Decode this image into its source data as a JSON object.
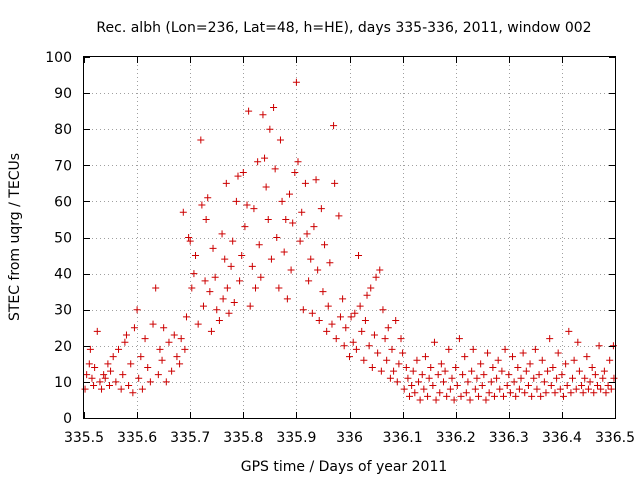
{
  "chart_data": {
    "type": "scatter",
    "title": "Rec. albh (Lon=236, Lat=48, h=HE), days 335-336, 2011, window 002",
    "xlabel": "GPS time / Days of year 2011",
    "ylabel": "STEC from uqrg / TECUs",
    "xlim": [
      335.5,
      336.5
    ],
    "ylim": [
      0,
      100
    ],
    "xticks": [
      "335.5",
      "335.6",
      "335.7",
      "335.8",
      "335.9",
      "336",
      "336.1",
      "336.2",
      "336.3",
      "336.4",
      "336.5"
    ],
    "yticks": [
      "0",
      "10",
      "20",
      "30",
      "40",
      "50",
      "60",
      "70",
      "80",
      "90",
      "100"
    ],
    "grid": true,
    "marker": "plus",
    "color": "#cc0000",
    "points": [
      [
        335.502,
        8
      ],
      [
        335.505,
        12
      ],
      [
        335.51,
        15
      ],
      [
        335.512,
        19
      ],
      [
        335.515,
        11
      ],
      [
        335.518,
        9
      ],
      [
        335.52,
        14
      ],
      [
        335.525,
        24
      ],
      [
        335.53,
        10
      ],
      [
        335.533,
        8
      ],
      [
        335.537,
        12
      ],
      [
        335.54,
        11
      ],
      [
        335.545,
        15
      ],
      [
        335.548,
        9
      ],
      [
        335.55,
        13
      ],
      [
        335.555,
        17
      ],
      [
        335.56,
        10
      ],
      [
        335.565,
        19
      ],
      [
        335.57,
        8
      ],
      [
        335.573,
        12
      ],
      [
        335.577,
        21
      ],
      [
        335.58,
        23
      ],
      [
        335.584,
        9
      ],
      [
        335.588,
        15
      ],
      [
        335.592,
        7
      ],
      [
        335.595,
        25
      ],
      [
        335.6,
        30
      ],
      [
        335.603,
        11
      ],
      [
        335.607,
        17
      ],
      [
        335.61,
        8
      ],
      [
        335.615,
        22
      ],
      [
        335.62,
        14
      ],
      [
        335.625,
        10
      ],
      [
        335.63,
        26
      ],
      [
        335.635,
        36
      ],
      [
        335.64,
        12
      ],
      [
        335.643,
        19
      ],
      [
        335.647,
        16
      ],
      [
        335.65,
        25
      ],
      [
        335.655,
        10
      ],
      [
        335.66,
        21
      ],
      [
        335.665,
        13
      ],
      [
        335.67,
        23
      ],
      [
        335.675,
        17
      ],
      [
        335.68,
        15
      ],
      [
        335.683,
        22
      ],
      [
        335.687,
        57
      ],
      [
        335.69,
        19
      ],
      [
        335.693,
        28
      ],
      [
        335.697,
        50
      ],
      [
        335.7,
        49
      ],
      [
        335.703,
        36
      ],
      [
        335.707,
        40
      ],
      [
        335.71,
        45
      ],
      [
        335.715,
        26
      ],
      [
        335.72,
        77
      ],
      [
        335.722,
        59
      ],
      [
        335.725,
        31
      ],
      [
        335.728,
        38
      ],
      [
        335.73,
        55
      ],
      [
        335.733,
        61
      ],
      [
        335.737,
        35
      ],
      [
        335.74,
        24
      ],
      [
        335.743,
        47
      ],
      [
        335.747,
        39
      ],
      [
        335.75,
        30
      ],
      [
        335.755,
        27
      ],
      [
        335.76,
        51
      ],
      [
        335.762,
        33
      ],
      [
        335.765,
        44
      ],
      [
        335.768,
        65
      ],
      [
        335.77,
        36
      ],
      [
        335.773,
        29
      ],
      [
        335.777,
        42
      ],
      [
        335.78,
        49
      ],
      [
        335.783,
        32
      ],
      [
        335.787,
        60
      ],
      [
        335.79,
        67
      ],
      [
        335.793,
        38
      ],
      [
        335.797,
        45
      ],
      [
        335.8,
        68
      ],
      [
        335.803,
        53
      ],
      [
        335.807,
        59
      ],
      [
        335.81,
        85
      ],
      [
        335.813,
        31
      ],
      [
        335.817,
        42
      ],
      [
        335.82,
        58
      ],
      [
        335.823,
        36
      ],
      [
        335.827,
        71
      ],
      [
        335.83,
        48
      ],
      [
        335.833,
        39
      ],
      [
        335.837,
        84
      ],
      [
        335.84,
        72
      ],
      [
        335.843,
        64
      ],
      [
        335.847,
        55
      ],
      [
        335.85,
        80
      ],
      [
        335.853,
        44
      ],
      [
        335.857,
        86
      ],
      [
        335.86,
        69
      ],
      [
        335.863,
        50
      ],
      [
        335.867,
        36
      ],
      [
        335.87,
        77
      ],
      [
        335.873,
        60
      ],
      [
        335.877,
        46
      ],
      [
        335.88,
        55
      ],
      [
        335.883,
        33
      ],
      [
        335.887,
        62
      ],
      [
        335.89,
        41
      ],
      [
        335.893,
        54
      ],
      [
        335.897,
        68
      ],
      [
        335.9,
        93
      ],
      [
        335.903,
        71
      ],
      [
        335.907,
        49
      ],
      [
        335.91,
        57
      ],
      [
        335.913,
        30
      ],
      [
        335.917,
        65
      ],
      [
        335.92,
        51
      ],
      [
        335.923,
        38
      ],
      [
        335.927,
        44
      ],
      [
        335.93,
        29
      ],
      [
        335.933,
        53
      ],
      [
        335.937,
        66
      ],
      [
        335.94,
        41
      ],
      [
        335.943,
        27
      ],
      [
        335.947,
        58
      ],
      [
        335.95,
        35
      ],
      [
        335.953,
        48
      ],
      [
        335.957,
        24
      ],
      [
        335.96,
        31
      ],
      [
        335.963,
        43
      ],
      [
        335.967,
        26
      ],
      [
        335.97,
        81
      ],
      [
        335.972,
        65
      ],
      [
        335.975,
        22
      ],
      [
        335.98,
        56
      ],
      [
        335.983,
        28
      ],
      [
        335.987,
        33
      ],
      [
        335.99,
        20
      ],
      [
        335.993,
        25
      ],
      [
        336.0,
        17
      ],
      [
        336.003,
        28
      ],
      [
        336.007,
        21
      ],
      [
        336.01,
        29
      ],
      [
        336.013,
        19
      ],
      [
        336.017,
        45
      ],
      [
        336.02,
        31
      ],
      [
        336.023,
        24
      ],
      [
        336.027,
        16
      ],
      [
        336.03,
        27
      ],
      [
        336.033,
        34
      ],
      [
        336.037,
        20
      ],
      [
        336.04,
        36
      ],
      [
        336.043,
        14
      ],
      [
        336.047,
        23
      ],
      [
        336.05,
        39
      ],
      [
        336.053,
        18
      ],
      [
        336.057,
        41
      ],
      [
        336.06,
        13
      ],
      [
        336.063,
        30
      ],
      [
        336.067,
        22
      ],
      [
        336.07,
        16
      ],
      [
        336.073,
        25
      ],
      [
        336.077,
        11
      ],
      [
        336.08,
        19
      ],
      [
        336.083,
        13
      ],
      [
        336.087,
        27
      ],
      [
        336.09,
        10
      ],
      [
        336.093,
        15
      ],
      [
        336.097,
        22
      ],
      [
        336.1,
        18
      ],
      [
        336.103,
        8
      ],
      [
        336.107,
        14
      ],
      [
        336.11,
        11
      ],
      [
        336.113,
        6
      ],
      [
        336.117,
        9
      ],
      [
        336.12,
        13
      ],
      [
        336.123,
        7
      ],
      [
        336.127,
        16
      ],
      [
        336.13,
        10
      ],
      [
        336.133,
        5
      ],
      [
        336.137,
        12
      ],
      [
        336.14,
        8
      ],
      [
        336.143,
        17
      ],
      [
        336.147,
        6
      ],
      [
        336.15,
        11
      ],
      [
        336.153,
        14
      ],
      [
        336.157,
        9
      ],
      [
        336.16,
        21
      ],
      [
        336.163,
        5
      ],
      [
        336.167,
        12
      ],
      [
        336.17,
        7
      ],
      [
        336.173,
        15
      ],
      [
        336.177,
        10
      ],
      [
        336.18,
        13
      ],
      [
        336.183,
        6
      ],
      [
        336.187,
        19
      ],
      [
        336.19,
        8
      ],
      [
        336.193,
        11
      ],
      [
        336.197,
        5
      ],
      [
        336.2,
        14
      ],
      [
        336.203,
        9
      ],
      [
        336.207,
        22
      ],
      [
        336.21,
        6
      ],
      [
        336.213,
        12
      ],
      [
        336.217,
        17
      ],
      [
        336.22,
        7
      ],
      [
        336.223,
        10
      ],
      [
        336.227,
        5
      ],
      [
        336.23,
        13
      ],
      [
        336.233,
        19
      ],
      [
        336.237,
        8
      ],
      [
        336.24,
        11
      ],
      [
        336.243,
        6
      ],
      [
        336.247,
        15
      ],
      [
        336.25,
        9
      ],
      [
        336.253,
        12
      ],
      [
        336.257,
        5
      ],
      [
        336.26,
        18
      ],
      [
        336.263,
        7
      ],
      [
        336.267,
        10
      ],
      [
        336.27,
        14
      ],
      [
        336.273,
        6
      ],
      [
        336.277,
        11
      ],
      [
        336.28,
        16
      ],
      [
        336.283,
        8
      ],
      [
        336.287,
        13
      ],
      [
        336.29,
        6
      ],
      [
        336.293,
        19
      ],
      [
        336.297,
        9
      ],
      [
        336.3,
        12
      ],
      [
        336.303,
        7
      ],
      [
        336.307,
        17
      ],
      [
        336.31,
        10
      ],
      [
        336.313,
        6
      ],
      [
        336.317,
        14
      ],
      [
        336.32,
        8
      ],
      [
        336.323,
        11
      ],
      [
        336.327,
        18
      ],
      [
        336.33,
        7
      ],
      [
        336.333,
        13
      ],
      [
        336.337,
        9
      ],
      [
        336.34,
        15
      ],
      [
        336.343,
        6
      ],
      [
        336.347,
        11
      ],
      [
        336.35,
        19
      ],
      [
        336.353,
        8
      ],
      [
        336.357,
        12
      ],
      [
        336.36,
        6
      ],
      [
        336.363,
        16
      ],
      [
        336.367,
        10
      ],
      [
        336.37,
        7
      ],
      [
        336.373,
        13
      ],
      [
        336.377,
        22
      ],
      [
        336.38,
        9
      ],
      [
        336.383,
        14
      ],
      [
        336.387,
        7
      ],
      [
        336.39,
        11
      ],
      [
        336.393,
        18
      ],
      [
        336.397,
        8
      ],
      [
        336.4,
        12
      ],
      [
        336.403,
        6
      ],
      [
        336.407,
        15
      ],
      [
        336.41,
        9
      ],
      [
        336.413,
        24
      ],
      [
        336.417,
        7
      ],
      [
        336.42,
        11
      ],
      [
        336.423,
        16
      ],
      [
        336.427,
        8
      ],
      [
        336.43,
        21
      ],
      [
        336.433,
        13
      ],
      [
        336.437,
        9
      ],
      [
        336.44,
        7
      ],
      [
        336.443,
        11
      ],
      [
        336.447,
        17
      ],
      [
        336.45,
        8
      ],
      [
        336.453,
        10
      ],
      [
        336.457,
        14
      ],
      [
        336.46,
        7
      ],
      [
        336.463,
        12
      ],
      [
        336.467,
        9
      ],
      [
        336.47,
        20
      ],
      [
        336.473,
        8
      ],
      [
        336.477,
        11
      ],
      [
        336.48,
        13
      ],
      [
        336.483,
        7
      ],
      [
        336.487,
        9
      ],
      [
        336.49,
        16
      ],
      [
        336.493,
        8
      ],
      [
        336.497,
        20
      ],
      [
        336.498,
        11
      ]
    ]
  }
}
